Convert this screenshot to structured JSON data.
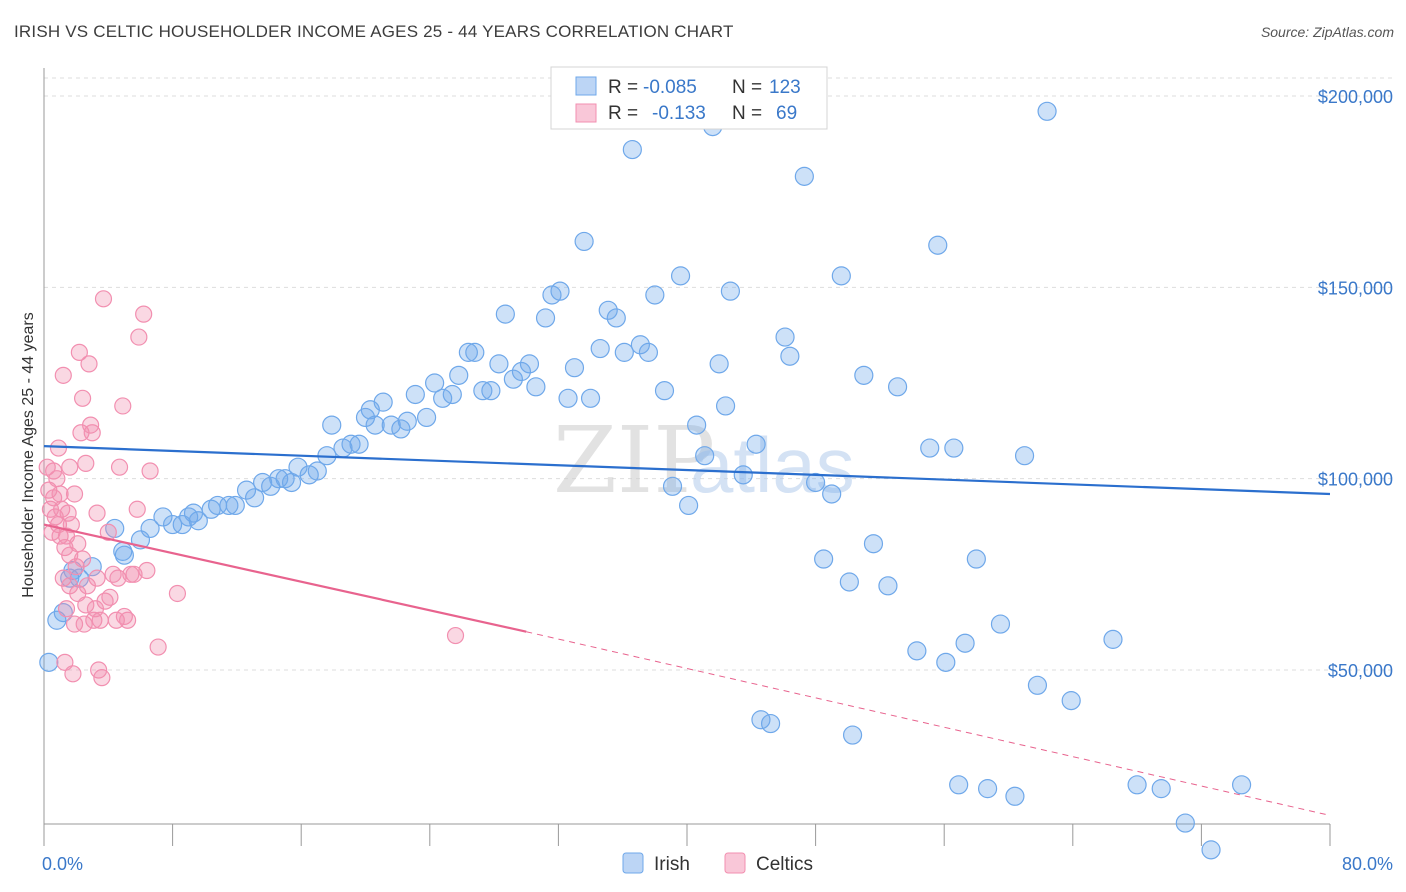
{
  "title": "IRISH VS CELTIC HOUSEHOLDER INCOME AGES 25 - 44 YEARS CORRELATION CHART",
  "source": "Source: ZipAtlas.com",
  "watermark": {
    "zip": "ZIP",
    "atlas": "atlas"
  },
  "colors": {
    "irish": "#6fa8ea",
    "irish_line": "#2b6fce",
    "celtics": "#f28fb0",
    "celtics_line": "#e8638e",
    "axis_text": "#3a78c9",
    "grid": "#dddddd"
  },
  "legend": {
    "r_label": "R =",
    "n_label": "N =",
    "irish_r": "-0.085",
    "irish_n": "123",
    "celtics_r": "-0.133",
    "celtics_n": "69"
  },
  "bottom_legend": {
    "irish": "Irish",
    "celtics": "Celtics"
  },
  "chart_data": {
    "type": "scatter",
    "title": "IRISH VS CELTIC HOUSEHOLDER INCOME AGES 25 - 44 YEARS CORRELATION CHART",
    "xlabel": "",
    "ylabel": "Householder Income Ages 25 - 44 years",
    "xlim": [
      0,
      80
    ],
    "ylim": [
      0,
      205000
    ],
    "x_tick_labels": [
      "0.0%",
      "80.0%"
    ],
    "y_tick_labels": [
      "$50,000",
      "$100,000",
      "$150,000",
      "$200,000"
    ],
    "y_ticks": [
      50000,
      100000,
      150000,
      200000
    ],
    "grid": true,
    "legend_position": "top-center",
    "series": [
      {
        "name": "Irish",
        "color": "#6fa8ea",
        "trend": {
          "x": [
            0,
            80
          ],
          "y": [
            108500,
            96000
          ]
        },
        "points": [
          [
            0.3,
            52000
          ],
          [
            0.8,
            63000
          ],
          [
            1.2,
            65000
          ],
          [
            1.6,
            74000
          ],
          [
            1.8,
            76000
          ],
          [
            2.2,
            74000
          ],
          [
            3.0,
            77000
          ],
          [
            4.4,
            87000
          ],
          [
            4.9,
            81000
          ],
          [
            5.0,
            80000
          ],
          [
            6.0,
            84000
          ],
          [
            6.6,
            87000
          ],
          [
            7.4,
            90000
          ],
          [
            8.0,
            88000
          ],
          [
            8.6,
            88000
          ],
          [
            9.0,
            90000
          ],
          [
            9.3,
            91000
          ],
          [
            9.6,
            89000
          ],
          [
            10.4,
            92000
          ],
          [
            10.8,
            93000
          ],
          [
            11.5,
            93000
          ],
          [
            11.9,
            93000
          ],
          [
            12.6,
            97000
          ],
          [
            13.1,
            95000
          ],
          [
            13.6,
            99000
          ],
          [
            14.1,
            98000
          ],
          [
            14.6,
            100000
          ],
          [
            15.0,
            100000
          ],
          [
            15.4,
            99000
          ],
          [
            15.8,
            103000
          ],
          [
            16.5,
            101000
          ],
          [
            17.0,
            102000
          ],
          [
            17.6,
            106000
          ],
          [
            17.9,
            114000
          ],
          [
            18.6,
            108000
          ],
          [
            19.1,
            109000
          ],
          [
            19.6,
            109000
          ],
          [
            20.0,
            116000
          ],
          [
            20.3,
            118000
          ],
          [
            20.6,
            114000
          ],
          [
            21.1,
            120000
          ],
          [
            21.6,
            114000
          ],
          [
            22.2,
            113000
          ],
          [
            22.6,
            115000
          ],
          [
            23.1,
            122000
          ],
          [
            23.8,
            116000
          ],
          [
            24.3,
            125000
          ],
          [
            24.8,
            121000
          ],
          [
            25.4,
            122000
          ],
          [
            25.8,
            127000
          ],
          [
            26.4,
            133000
          ],
          [
            26.8,
            133000
          ],
          [
            27.3,
            123000
          ],
          [
            27.8,
            123000
          ],
          [
            28.3,
            130000
          ],
          [
            28.7,
            143000
          ],
          [
            29.2,
            126000
          ],
          [
            29.7,
            128000
          ],
          [
            30.2,
            130000
          ],
          [
            30.6,
            124000
          ],
          [
            31.2,
            142000
          ],
          [
            31.6,
            148000
          ],
          [
            32.1,
            149000
          ],
          [
            32.6,
            121000
          ],
          [
            33.0,
            129000
          ],
          [
            33.6,
            162000
          ],
          [
            34.0,
            121000
          ],
          [
            34.6,
            134000
          ],
          [
            35.1,
            144000
          ],
          [
            35.6,
            142000
          ],
          [
            36.1,
            133000
          ],
          [
            36.6,
            186000
          ],
          [
            37.1,
            135000
          ],
          [
            37.6,
            133000
          ],
          [
            38.0,
            148000
          ],
          [
            38.6,
            123000
          ],
          [
            39.1,
            98000
          ],
          [
            39.6,
            153000
          ],
          [
            40.1,
            93000
          ],
          [
            40.6,
            114000
          ],
          [
            41.1,
            106000
          ],
          [
            41.6,
            192000
          ],
          [
            42.0,
            130000
          ],
          [
            42.4,
            119000
          ],
          [
            42.7,
            149000
          ],
          [
            43.5,
            101000
          ],
          [
            44.3,
            109000
          ],
          [
            46.1,
            137000
          ],
          [
            46.4,
            132000
          ],
          [
            47.3,
            179000
          ],
          [
            48.0,
            99000
          ],
          [
            48.5,
            79000
          ],
          [
            49.0,
            96000
          ],
          [
            49.6,
            153000
          ],
          [
            50.1,
            73000
          ],
          [
            51.0,
            127000
          ],
          [
            51.6,
            83000
          ],
          [
            52.5,
            72000
          ],
          [
            53.1,
            124000
          ],
          [
            54.3,
            55000
          ],
          [
            55.1,
            108000
          ],
          [
            55.6,
            161000
          ],
          [
            56.1,
            52000
          ],
          [
            56.6,
            108000
          ],
          [
            57.3,
            57000
          ],
          [
            58.0,
            79000
          ],
          [
            59.5,
            62000
          ],
          [
            61.0,
            106000
          ],
          [
            62.4,
            196000
          ],
          [
            61.8,
            46000
          ],
          [
            63.9,
            42000
          ],
          [
            66.5,
            58000
          ],
          [
            68.0,
            20000
          ],
          [
            69.5,
            19000
          ],
          [
            71.0,
            10000
          ],
          [
            72.6,
            3000
          ],
          [
            74.5,
            20000
          ],
          [
            50.3,
            33000
          ],
          [
            44.6,
            37000
          ],
          [
            45.2,
            36000
          ],
          [
            56.9,
            20000
          ],
          [
            58.7,
            19000
          ],
          [
            60.4,
            17000
          ]
        ]
      },
      {
        "name": "Celtics",
        "color": "#f28fb0",
        "trend": {
          "x": [
            0,
            30
          ],
          "y": [
            88000,
            60000
          ],
          "dashed_to": {
            "x": 80,
            "y": 12000
          }
        },
        "points": [
          [
            0.2,
            103000
          ],
          [
            0.3,
            97000
          ],
          [
            0.4,
            92000
          ],
          [
            0.5,
            86000
          ],
          [
            0.6,
            102000
          ],
          [
            0.6,
            95000
          ],
          [
            0.7,
            90000
          ],
          [
            0.8,
            100000
          ],
          [
            0.9,
            88000
          ],
          [
            1.0,
            85000
          ],
          [
            1.0,
            96000
          ],
          [
            1.1,
            92000
          ],
          [
            1.2,
            74000
          ],
          [
            1.2,
            127000
          ],
          [
            1.3,
            82000
          ],
          [
            1.4,
            66000
          ],
          [
            1.4,
            85000
          ],
          [
            1.5,
            91000
          ],
          [
            1.6,
            72000
          ],
          [
            1.6,
            103000
          ],
          [
            1.7,
            88000
          ],
          [
            1.8,
            49000
          ],
          [
            1.9,
            62000
          ],
          [
            1.9,
            96000
          ],
          [
            2.0,
            77000
          ],
          [
            2.1,
            70000
          ],
          [
            2.1,
            83000
          ],
          [
            2.2,
            133000
          ],
          [
            2.3,
            112000
          ],
          [
            2.4,
            121000
          ],
          [
            2.4,
            79000
          ],
          [
            2.5,
            62000
          ],
          [
            2.6,
            67000
          ],
          [
            2.7,
            72000
          ],
          [
            2.8,
            130000
          ],
          [
            2.9,
            114000
          ],
          [
            3.0,
            112000
          ],
          [
            3.1,
            63000
          ],
          [
            3.2,
            66000
          ],
          [
            3.3,
            91000
          ],
          [
            3.3,
            74000
          ],
          [
            3.4,
            50000
          ],
          [
            3.5,
            63000
          ],
          [
            3.6,
            48000
          ],
          [
            3.7,
            147000
          ],
          [
            3.8,
            68000
          ],
          [
            4.0,
            86000
          ],
          [
            4.1,
            69000
          ],
          [
            4.3,
            75000
          ],
          [
            4.5,
            63000
          ],
          [
            4.6,
            74000
          ],
          [
            4.7,
            103000
          ],
          [
            4.9,
            119000
          ],
          [
            5.0,
            64000
          ],
          [
            5.2,
            63000
          ],
          [
            5.4,
            75000
          ],
          [
            5.6,
            75000
          ],
          [
            5.8,
            92000
          ],
          [
            5.9,
            137000
          ],
          [
            6.2,
            143000
          ],
          [
            6.4,
            76000
          ],
          [
            6.6,
            102000
          ],
          [
            7.1,
            56000
          ],
          [
            8.3,
            70000
          ],
          [
            25.6,
            59000
          ],
          [
            1.3,
            52000
          ],
          [
            0.9,
            108000
          ],
          [
            1.6,
            80000
          ],
          [
            2.6,
            104000
          ]
        ]
      }
    ]
  }
}
